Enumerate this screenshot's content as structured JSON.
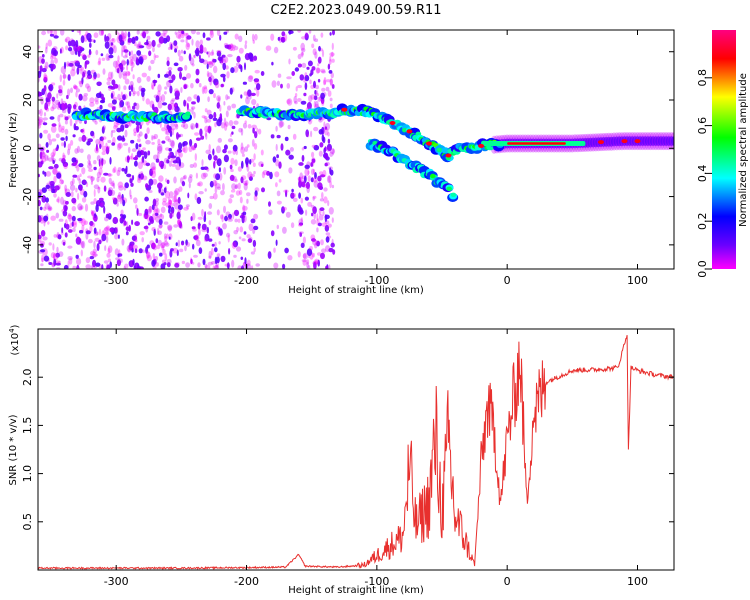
{
  "title": "C2E2.2023.049.00.59.R11",
  "chart_data": [
    {
      "type": "heatmap",
      "xlabel": "Height of straight line (km)",
      "ylabel": "Frequency (Hz)",
      "xlim": [
        -360,
        128
      ],
      "ylim": [
        -50,
        49
      ],
      "x_ticks": [
        -300,
        -200,
        -100,
        0,
        100
      ],
      "y_ticks": [
        -40,
        -20,
        0,
        20,
        40
      ],
      "colorbar": {
        "label": "Normalized spectral amplitude",
        "range": [
          0,
          1
        ],
        "ticks": [
          0.0,
          0.2,
          0.4,
          0.6,
          0.8
        ],
        "colors": [
          "#ff00ff",
          "#6a00ff",
          "#0000ff",
          "#00ffff",
          "#00ff00",
          "#ffff00",
          "#ff0000",
          "#ff0080"
        ]
      },
      "ridge": [
        {
          "x": -328,
          "y": 14
        },
        {
          "x": -300,
          "y": 13
        },
        {
          "x": -270,
          "y": 13
        },
        {
          "x": -250,
          "y": 13
        },
        {
          "x": -200,
          "y": 15
        },
        {
          "x": -170,
          "y": 14
        },
        {
          "x": -140,
          "y": 14
        },
        {
          "x": -125,
          "y": 16
        },
        {
          "x": -105,
          "y": 15
        },
        {
          "x": -90,
          "y": 11
        },
        {
          "x": -75,
          "y": 7
        },
        {
          "x": -60,
          "y": 2
        },
        {
          "x": -45,
          "y": -3
        },
        {
          "x": -35,
          "y": 0
        },
        {
          "x": -20,
          "y": 1
        },
        {
          "x": 0,
          "y": 2
        },
        {
          "x": 50,
          "y": 2
        },
        {
          "x": 90,
          "y": 3
        },
        {
          "x": 128,
          "y": 3
        }
      ],
      "lower_branch": [
        {
          "x": -105,
          "y": 2
        },
        {
          "x": -90,
          "y": -1
        },
        {
          "x": -75,
          "y": -6
        },
        {
          "x": -60,
          "y": -11
        },
        {
          "x": -45,
          "y": -17
        },
        {
          "x": -40,
          "y": -21
        }
      ]
    },
    {
      "type": "line",
      "xlabel": "Height of straight line (km)",
      "ylabel": "SNR (10 * v/v)",
      "y_multiplier": "(x10",
      "y_multiplier_exp": "4",
      "y_multiplier_close": ")",
      "xlim": [
        -360,
        128
      ],
      "ylim": [
        0,
        25000
      ],
      "x_ticks": [
        -300,
        -200,
        -100,
        0,
        100
      ],
      "y_ticks": [
        5000,
        10000,
        15000,
        20000
      ],
      "y_tick_labels": [
        "0.5",
        "1.0",
        "1.5",
        "2.0"
      ],
      "series": [
        {
          "color": "#e8302e",
          "points": [
            {
              "x": -360,
              "y": 200
            },
            {
              "x": -300,
              "y": 200
            },
            {
              "x": -250,
              "y": 200
            },
            {
              "x": -200,
              "y": 250
            },
            {
              "x": -170,
              "y": 300
            },
            {
              "x": -160,
              "y": 1600
            },
            {
              "x": -155,
              "y": 400
            },
            {
              "x": -130,
              "y": 300
            },
            {
              "x": -110,
              "y": 500
            },
            {
              "x": -100,
              "y": 1500
            },
            {
              "x": -90,
              "y": 2500
            },
            {
              "x": -80,
              "y": 3500
            },
            {
              "x": -75,
              "y": 10500
            },
            {
              "x": -70,
              "y": 4500
            },
            {
              "x": -60,
              "y": 7000
            },
            {
              "x": -55,
              "y": 13500
            },
            {
              "x": -50,
              "y": 6000
            },
            {
              "x": -45,
              "y": 13000
            },
            {
              "x": -40,
              "y": 5500
            },
            {
              "x": -35,
              "y": 4000
            },
            {
              "x": -25,
              "y": 500
            },
            {
              "x": -20,
              "y": 11000
            },
            {
              "x": -15,
              "y": 17000
            },
            {
              "x": -10,
              "y": 14500
            },
            {
              "x": -5,
              "y": 7000
            },
            {
              "x": 0,
              "y": 13500
            },
            {
              "x": 10,
              "y": 22000
            },
            {
              "x": 15,
              "y": 7000
            },
            {
              "x": 20,
              "y": 16000
            },
            {
              "x": 30,
              "y": 19500
            },
            {
              "x": 50,
              "y": 20700
            },
            {
              "x": 70,
              "y": 20800
            },
            {
              "x": 85,
              "y": 21000
            },
            {
              "x": 92,
              "y": 24500
            },
            {
              "x": 93,
              "y": 12300
            },
            {
              "x": 95,
              "y": 21000
            },
            {
              "x": 100,
              "y": 20700
            },
            {
              "x": 115,
              "y": 20200
            },
            {
              "x": 128,
              "y": 20000
            }
          ]
        }
      ]
    }
  ]
}
